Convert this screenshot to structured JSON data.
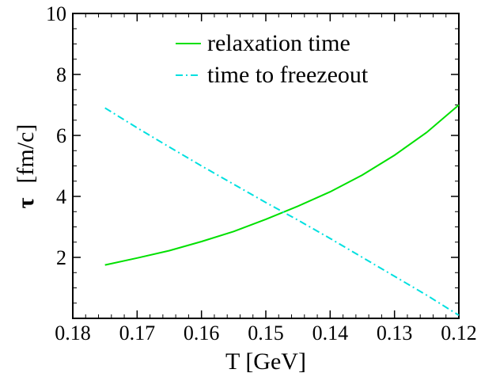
{
  "chart_data": {
    "type": "line",
    "xlabel": "T [GeV]",
    "ylabel_symbol": "τ",
    "ylabel_unit": "[fm/c]",
    "xlim": [
      0.18,
      0.12
    ],
    "ylim": [
      0,
      10
    ],
    "x_ticks": [
      {
        "value": 0.18,
        "label": "0.18"
      },
      {
        "value": 0.17,
        "label": "0.17"
      },
      {
        "value": 0.16,
        "label": "0.16"
      },
      {
        "value": 0.15,
        "label": "0.15"
      },
      {
        "value": 0.14,
        "label": "0.14"
      },
      {
        "value": 0.13,
        "label": "0.13"
      },
      {
        "value": 0.12,
        "label": "0.12"
      }
    ],
    "y_ticks": [
      {
        "value": 2,
        "label": "2"
      },
      {
        "value": 4,
        "label": "4"
      },
      {
        "value": 6,
        "label": "6"
      },
      {
        "value": 8,
        "label": "8"
      },
      {
        "value": 10,
        "label": "10"
      }
    ],
    "legend_position": "top-right",
    "series": [
      {
        "name": "relaxation time",
        "color": "#00e000",
        "style": "solid",
        "x": [
          0.175,
          0.17,
          0.165,
          0.16,
          0.155,
          0.15,
          0.145,
          0.14,
          0.135,
          0.13,
          0.125,
          0.12
        ],
        "y": [
          1.75,
          1.98,
          2.22,
          2.52,
          2.85,
          3.25,
          3.68,
          4.15,
          4.7,
          5.35,
          6.1,
          7.0
        ]
      },
      {
        "name": "time to freezeout",
        "color": "#00e0e0",
        "style": "dashdot",
        "x": [
          0.175,
          0.17,
          0.165,
          0.16,
          0.155,
          0.15,
          0.145,
          0.14,
          0.135,
          0.13,
          0.125,
          0.12
        ],
        "y": [
          6.9,
          6.25,
          5.62,
          5.0,
          4.4,
          3.8,
          3.22,
          2.62,
          2.0,
          1.38,
          0.76,
          0.1
        ]
      }
    ]
  }
}
